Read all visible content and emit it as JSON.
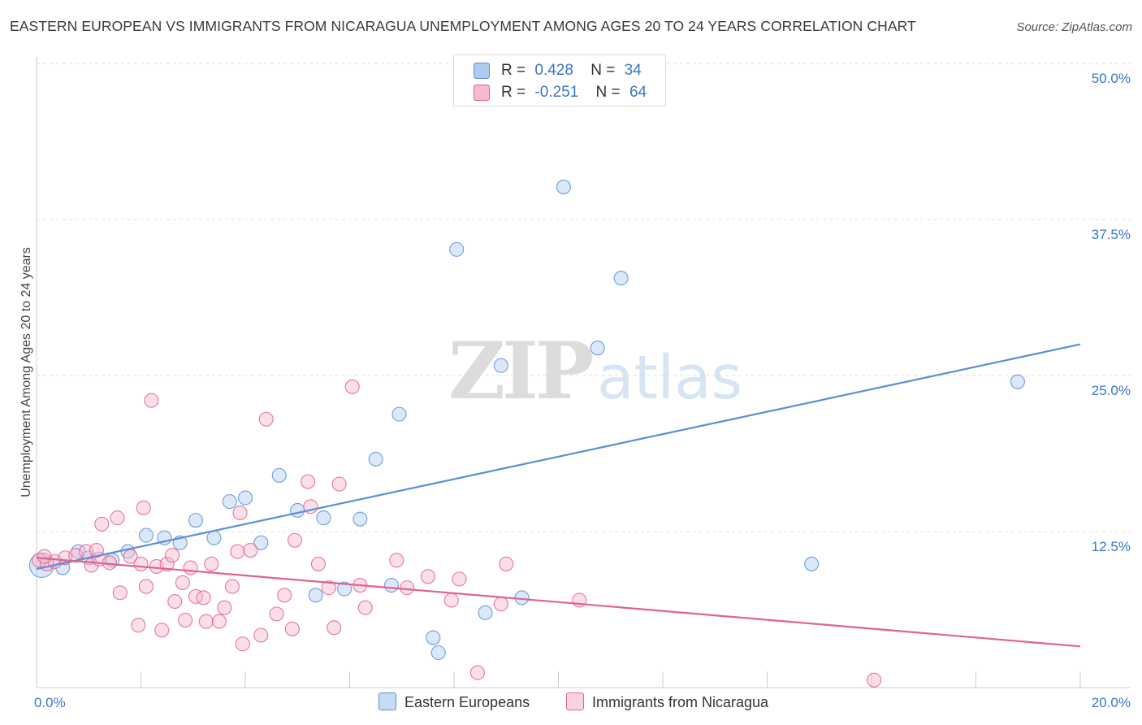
{
  "title": "EASTERN EUROPEAN VS IMMIGRANTS FROM NICARAGUA UNEMPLOYMENT AMONG AGES 20 TO 24 YEARS CORRELATION CHART",
  "source": "Source: ZipAtlas.com",
  "watermark": {
    "zip": "ZIP",
    "atlas": "atlas"
  },
  "legend": {
    "rows": [
      {
        "r_label": "R =",
        "r_value": "0.428",
        "n_label": "N =",
        "n_value": "34",
        "color": "#aecbef"
      },
      {
        "r_label": "R =",
        "r_value": "-0.251",
        "n_label": "N =",
        "n_value": "64",
        "color": "#f7b9cc"
      }
    ]
  },
  "bottom_legend": [
    "Eastern Europeans",
    "Immigrants from Nicaragua"
  ],
  "chart_data": {
    "type": "scatter",
    "title": "EASTERN EUROPEAN VS IMMIGRANTS FROM NICARAGUA UNEMPLOYMENT AMONG AGES 20 TO 24 YEARS CORRELATION CHART",
    "xlabel": "",
    "ylabel": "Unemployment Among Ages 20 to 24 years",
    "xlim": [
      0,
      20
    ],
    "ylim": [
      0,
      50
    ],
    "x_tick_labels": [
      "0.0%",
      "20.0%"
    ],
    "y_ticks": [
      12.5,
      25.0,
      37.5,
      50.0
    ],
    "y_tick_labels": [
      "12.5%",
      "25.0%",
      "37.5%",
      "50.0%"
    ],
    "grid": true,
    "legend_placement": "top-center",
    "series": [
      {
        "name": "Eastern Europeans",
        "color": "#5b8fd6",
        "fill": "#aecbef",
        "r": 0.428,
        "n": 34,
        "trend": {
          "x": [
            0,
            20
          ],
          "y": [
            9.5,
            27.5
          ]
        },
        "points": [
          [
            0.1,
            9.8
          ],
          [
            0.5,
            9.6
          ],
          [
            0.8,
            10.9
          ],
          [
            1.0,
            10.4
          ],
          [
            1.45,
            10.2
          ],
          [
            1.75,
            10.9
          ],
          [
            2.1,
            12.2
          ],
          [
            2.45,
            12.0
          ],
          [
            2.75,
            11.6
          ],
          [
            3.05,
            13.4
          ],
          [
            3.4,
            12.0
          ],
          [
            3.7,
            14.9
          ],
          [
            4.0,
            15.2
          ],
          [
            4.3,
            11.6
          ],
          [
            4.65,
            17.0
          ],
          [
            5.0,
            14.2
          ],
          [
            5.35,
            7.4
          ],
          [
            5.5,
            13.6
          ],
          [
            5.9,
            7.9
          ],
          [
            6.2,
            13.5
          ],
          [
            6.5,
            18.3
          ],
          [
            6.8,
            8.2
          ],
          [
            6.95,
            21.9
          ],
          [
            7.6,
            4.0
          ],
          [
            7.7,
            2.8
          ],
          [
            8.05,
            35.1
          ],
          [
            8.6,
            6.0
          ],
          [
            8.9,
            25.8
          ],
          [
            9.3,
            7.2
          ],
          [
            10.1,
            40.1
          ],
          [
            10.75,
            27.2
          ],
          [
            11.2,
            32.8
          ],
          [
            14.85,
            9.9
          ],
          [
            18.8,
            24.5
          ]
        ]
      },
      {
        "name": "Immigrants from Nicaragua",
        "color": "#e0628f",
        "fill": "#f7b9cc",
        "r": -0.251,
        "n": 64,
        "trend": {
          "x": [
            0,
            20
          ],
          "y": [
            10.4,
            3.3
          ]
        },
        "points": [
          [
            0.05,
            10.2
          ],
          [
            0.2,
            9.9
          ],
          [
            0.35,
            10.1
          ],
          [
            0.55,
            10.4
          ],
          [
            0.75,
            10.6
          ],
          [
            0.95,
            10.9
          ],
          [
            1.05,
            9.8
          ],
          [
            1.2,
            10.3
          ],
          [
            1.25,
            13.1
          ],
          [
            1.4,
            10.0
          ],
          [
            1.55,
            13.6
          ],
          [
            1.6,
            7.6
          ],
          [
            1.8,
            10.5
          ],
          [
            1.95,
            5.0
          ],
          [
            2.0,
            9.9
          ],
          [
            2.05,
            14.4
          ],
          [
            2.1,
            8.1
          ],
          [
            2.2,
            23.0
          ],
          [
            2.3,
            9.7
          ],
          [
            2.4,
            4.6
          ],
          [
            2.5,
            9.9
          ],
          [
            2.6,
            10.6
          ],
          [
            2.65,
            6.9
          ],
          [
            2.8,
            8.4
          ],
          [
            2.85,
            5.4
          ],
          [
            2.95,
            9.6
          ],
          [
            3.05,
            7.3
          ],
          [
            3.2,
            7.2
          ],
          [
            3.25,
            5.3
          ],
          [
            3.35,
            9.9
          ],
          [
            3.5,
            5.3
          ],
          [
            3.6,
            6.4
          ],
          [
            3.75,
            8.1
          ],
          [
            3.85,
            10.9
          ],
          [
            3.9,
            14.0
          ],
          [
            3.95,
            3.5
          ],
          [
            4.1,
            11.0
          ],
          [
            4.3,
            4.2
          ],
          [
            4.4,
            21.5
          ],
          [
            4.6,
            5.9
          ],
          [
            4.75,
            7.4
          ],
          [
            4.9,
            4.7
          ],
          [
            4.95,
            11.8
          ],
          [
            5.2,
            16.5
          ],
          [
            5.25,
            14.5
          ],
          [
            5.4,
            9.9
          ],
          [
            5.6,
            8.0
          ],
          [
            5.7,
            4.8
          ],
          [
            5.8,
            16.3
          ],
          [
            6.05,
            24.1
          ],
          [
            6.2,
            8.2
          ],
          [
            6.3,
            6.4
          ],
          [
            6.9,
            10.2
          ],
          [
            7.1,
            8.0
          ],
          [
            7.5,
            8.9
          ],
          [
            7.95,
            7.0
          ],
          [
            8.1,
            8.7
          ],
          [
            8.45,
            1.2
          ],
          [
            8.9,
            6.7
          ],
          [
            9.0,
            9.9
          ],
          [
            10.4,
            7.0
          ],
          [
            16.05,
            0.6
          ],
          [
            0.15,
            10.5
          ],
          [
            1.15,
            11.0
          ]
        ]
      }
    ]
  }
}
